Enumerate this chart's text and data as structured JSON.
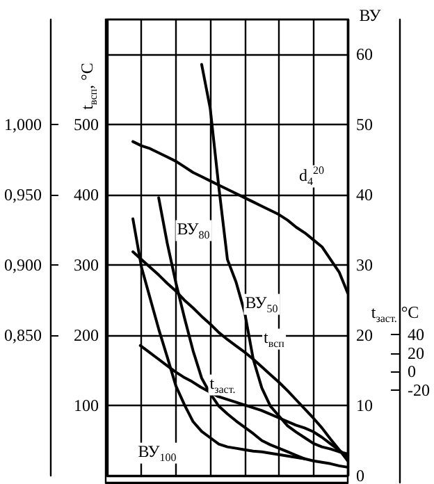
{
  "chart_data": [
    {
      "type": "line",
      "ylabel": "t$_{всп}$, °C",
      "y2label": "ВУ",
      "categories": [
        null,
        null,
        null,
        null,
        null,
        null,
        null,
        null,
        null,
        null,
        null,
        null,
        null,
        null,
        null,
        null,
        null,
        null,
        null,
        null,
        null,
        null,
        null,
        null,
        null,
        null,
        null,
        null,
        null
      ],
      "ylim": [
        0,
        650
      ],
      "yticks": [
        100,
        200,
        300,
        400,
        500
      ],
      "y2lim": [
        0,
        65
      ],
      "y2ticks": [
        0,
        10,
        20,
        30,
        40,
        50,
        60
      ],
      "y3lim": [
        0.75,
        1.075
      ],
      "y3ticks": [
        {
          "value": 0.85,
          "label": "0,850"
        },
        {
          "value": 0.9,
          "label": "0,900"
        },
        {
          "value": 0.95,
          "label": "0,950"
        },
        {
          "value": 1.0,
          "label": "1,000"
        }
      ],
      "tick_labels": "y",
      "grid": true,
      "line_style": "solid",
      "series": [
        {
          "name": "d$_{4}$$^{20}$",
          "axis": "y3",
          "color": "#000000",
          "values": [
            null,
            null,
            null,
            0.988,
            0.985,
            0.983,
            0.98,
            0.977,
            0.974,
            0.97,
            0.966,
            0.963,
            0.96,
            0.957,
            0.954,
            0.951,
            0.948,
            0.945,
            0.942,
            0.939,
            0.936,
            0.932,
            0.927,
            0.923,
            0.918,
            0.913,
            0.904,
            0.895,
            0.88
          ]
        },
        {
          "name": "t$_{всп}$",
          "axis": "y",
          "color": "#000000",
          "values": [
            null,
            null,
            null,
            319,
            308,
            297,
            286,
            274,
            263,
            250,
            239,
            227,
            216,
            204,
            194,
            185,
            176,
            166,
            155,
            144,
            133,
            121,
            108,
            95,
            82,
            68,
            52,
            37,
            21
          ]
        },
        {
          "name": "ВУ$_{50}$",
          "axis": "y2",
          "color": "#000000",
          "values": [
            null,
            null,
            null,
            null,
            null,
            null,
            null,
            null,
            null,
            null,
            null,
            58.6,
            52.3,
            41.1,
            30.8,
            27.6,
            23.3,
            16.6,
            12.5,
            9.9,
            8.5,
            7.1,
            6.2,
            5.4,
            4.6,
            4.1,
            3.8,
            3.4,
            3.1
          ]
        },
        {
          "name": "ВУ$_{80}$",
          "axis": "y2",
          "color": "#000000",
          "values": [
            null,
            null,
            null,
            null,
            null,
            null,
            39.6,
            33.1,
            27.5,
            22.5,
            17.8,
            13.9,
            11.7,
            9.9,
            8.8,
            7.8,
            6.9,
            6.0,
            5.0,
            4.4,
            3.9,
            3.4,
            2.9,
            2.4,
            2.1,
            1.9,
            1.7,
            1.4,
            1.2
          ]
        },
        {
          "name": "ВУ$_{100}$",
          "axis": "y2",
          "color": "#000000",
          "values": [
            null,
            null,
            null,
            36.6,
            29.7,
            25.3,
            20.9,
            16.9,
            12.8,
            10.1,
            7.7,
            6.3,
            5.4,
            4.5,
            4.1,
            3.9,
            3.7,
            3.5,
            3.4,
            3.2,
            3.0,
            2.8,
            2.6,
            2.4,
            null,
            null,
            null,
            null,
            null
          ]
        }
      ]
    },
    {
      "type": "line",
      "ylabel": "t$_{заст.}$ °C",
      "categories": [
        null,
        null,
        null,
        null,
        null,
        null,
        null,
        null,
        null,
        null,
        null,
        null,
        null,
        null,
        null,
        null,
        null,
        null,
        null,
        null,
        null,
        null,
        null,
        null,
        null,
        null,
        null,
        null,
        null
      ],
      "ylim": [
        -120,
        380
      ],
      "yticks": [
        -20,
        0,
        20,
        40
      ],
      "tick_labels": "y",
      "line_style": "solid",
      "series": [
        {
          "name": "t$_{заст.}$",
          "color": "#000000",
          "values": [
            null,
            null,
            null,
            null,
            28,
            21,
            14,
            7,
            0,
            -6,
            -11,
            -17,
            -22,
            -27,
            -30,
            -33,
            -36,
            -39,
            -42,
            -46,
            -50,
            -54,
            -58,
            -61,
            -65,
            -71,
            -78,
            -85,
            -92
          ]
        }
      ]
    }
  ]
}
